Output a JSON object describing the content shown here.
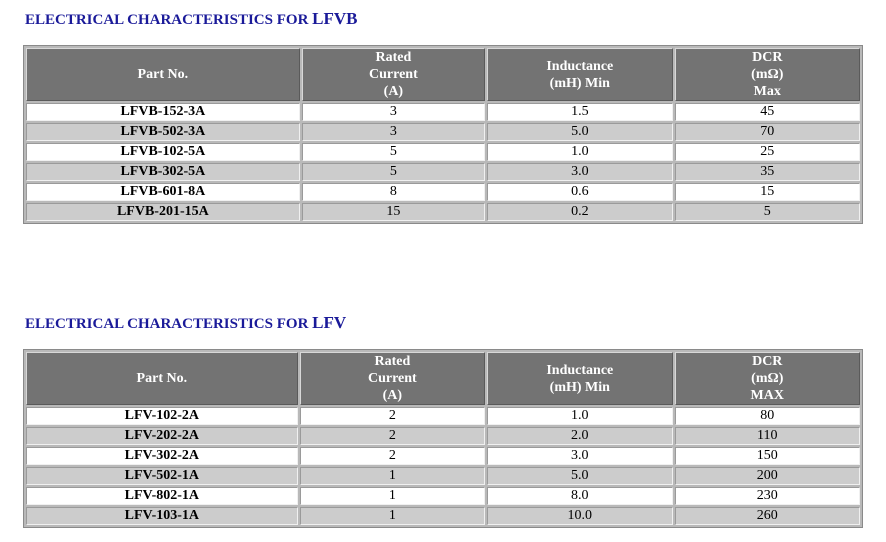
{
  "tables": [
    {
      "title_prefix": "ELECTRICAL CHARACTERISTICS FOR ",
      "title_model": "LFVB",
      "headers": {
        "part": "Part No.",
        "current": [
          "Rated",
          "Current",
          "(A)"
        ],
        "inductance": [
          "Inductance",
          "(mH) Min"
        ],
        "dcr": [
          "DCR",
          "(mΩ)",
          "Max"
        ]
      },
      "rows": [
        {
          "part": "LFVB-152-3A",
          "current": "3",
          "inductance": "1.5",
          "dcr": "45"
        },
        {
          "part": "LFVB-502-3A",
          "current": "3",
          "inductance": "5.0",
          "dcr": "70"
        },
        {
          "part": "LFVB-102-5A",
          "current": "5",
          "inductance": "1.0",
          "dcr": "25"
        },
        {
          "part": "LFVB-302-5A",
          "current": "5",
          "inductance": "3.0",
          "dcr": "35"
        },
        {
          "part": "LFVB-601-8A",
          "current": "8",
          "inductance": "0.6",
          "dcr": "15"
        },
        {
          "part": "LFVB-201-15A",
          "current": "15",
          "inductance": "0.2",
          "dcr": "5"
        }
      ]
    },
    {
      "title_prefix": "ELECTRICAL CHARACTERISTICS FOR ",
      "title_model": "LFV",
      "headers": {
        "part": "Part No.",
        "current": [
          "Rated",
          "Current",
          "(A)"
        ],
        "inductance": [
          "Inductance",
          "(mH) Min"
        ],
        "dcr": [
          "DCR",
          "(mΩ)",
          "MAX"
        ]
      },
      "rows": [
        {
          "part": "LFV-102-2A",
          "current": "2",
          "inductance": "1.0",
          "dcr": "80"
        },
        {
          "part": "LFV-202-2A",
          "current": "2",
          "inductance": "2.0",
          "dcr": "110"
        },
        {
          "part": "LFV-302-2A",
          "current": "2",
          "inductance": "3.0",
          "dcr": "150"
        },
        {
          "part": "LFV-502-1A",
          "current": "1",
          "inductance": "5.0",
          "dcr": "200"
        },
        {
          "part": "LFV-802-1A",
          "current": "1",
          "inductance": "8.0",
          "dcr": "230"
        },
        {
          "part": "LFV-103-1A",
          "current": "1",
          "inductance": "10.0",
          "dcr": "260"
        }
      ]
    }
  ]
}
